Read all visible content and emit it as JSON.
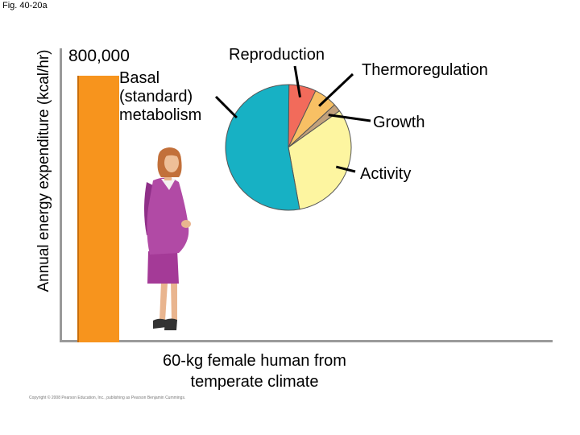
{
  "figure_label": "Fig. 40-20a",
  "copyright": "Copyright © 2008 Pearson Education, Inc., publishing as Pearson Benjamin Cummings.",
  "chart_data": {
    "type": "bar",
    "ylabel": "Annual energy expenditure (kcal/hr)",
    "bars": [
      {
        "value": 800000,
        "value_label": "800,000",
        "category": "60-kg female human from temperate climate",
        "color": "#f7941d"
      }
    ],
    "breakdown": {
      "type": "pie",
      "slices": [
        {
          "label": "Reproduction",
          "percent": 7,
          "color": "#f26b5b"
        },
        {
          "label": "Thermoregulation",
          "percent": 6,
          "color": "#f8c064"
        },
        {
          "label": "Growth",
          "percent": 2,
          "color": "#c2a17b"
        },
        {
          "label": "Activity",
          "percent": 32,
          "color": "#fdf5a0"
        },
        {
          "label": "Basal (standard) metabolism",
          "percent": 53,
          "color": "#17b1c4"
        }
      ]
    }
  }
}
